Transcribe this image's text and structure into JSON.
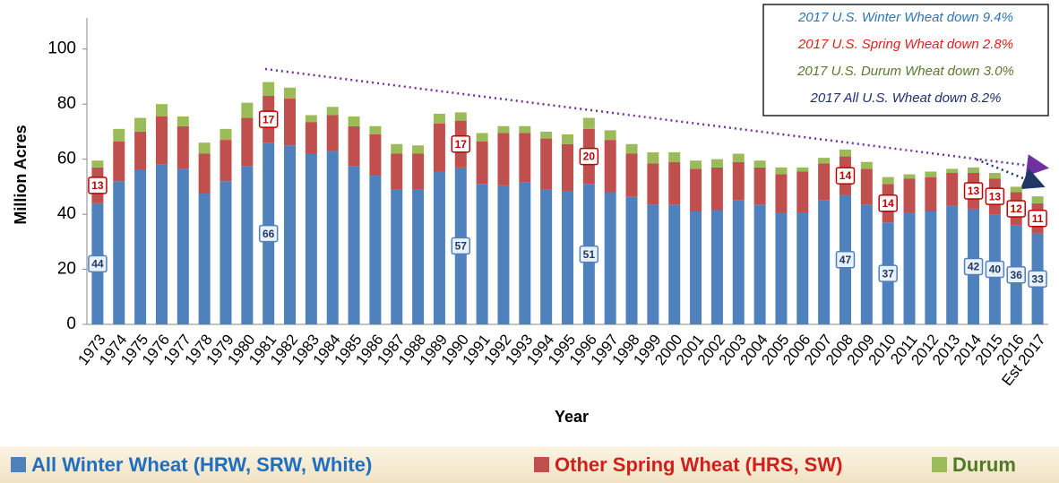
{
  "chart_data": {
    "type": "stacked_bar",
    "x_label": "Year",
    "y_label": "Million Acres",
    "categories": [
      "1973",
      "1974",
      "1975",
      "1976",
      "1977",
      "1978",
      "1979",
      "1980",
      "1981",
      "1982",
      "1983",
      "1984",
      "1985",
      "1986",
      "1987",
      "1988",
      "1989",
      "1990",
      "1991",
      "1992",
      "1993",
      "1994",
      "1995",
      "1996",
      "1997",
      "1998",
      "1999",
      "2000",
      "2001",
      "2002",
      "2003",
      "2004",
      "2005",
      "2006",
      "2007",
      "2008",
      "2009",
      "2010",
      "2011",
      "2012",
      "2013",
      "2014",
      "2015",
      "2016",
      "Est 2017"
    ],
    "series": [
      {
        "name": "All Winter Wheat (HRW, SRW, White)",
        "color": "#4f81bd",
        "legend_color": "#1f6fc0",
        "values": [
          44,
          52,
          56,
          58,
          56.5,
          47.5,
          52,
          57.5,
          66,
          65,
          62,
          63,
          57.5,
          54,
          49,
          49,
          55.5,
          57,
          51,
          50.5,
          51.5,
          49,
          48.5,
          51,
          48,
          46.5,
          43.5,
          43.5,
          41,
          41.5,
          45,
          43.5,
          40.5,
          40.5,
          45,
          47,
          43.5,
          37,
          40.5,
          41,
          43,
          42,
          40,
          36,
          33
        ],
        "value_labels": [
          "44",
          null,
          null,
          null,
          null,
          null,
          null,
          null,
          "66",
          null,
          null,
          null,
          null,
          null,
          null,
          null,
          null,
          "57",
          null,
          null,
          null,
          null,
          null,
          "51",
          null,
          null,
          null,
          null,
          null,
          null,
          null,
          null,
          null,
          null,
          null,
          "47",
          null,
          "37",
          null,
          null,
          null,
          "42",
          "40",
          "36",
          "33"
        ]
      },
      {
        "name": "Other Spring Wheat (HRS, SW)",
        "color": "#c0504d",
        "legend_color": "#d0201c",
        "values": [
          13,
          14.5,
          14,
          17.5,
          15.5,
          14.5,
          15,
          17.5,
          17,
          17,
          11.5,
          13,
          14.5,
          15,
          13,
          13,
          17.5,
          17,
          15.5,
          19,
          18,
          18.5,
          17,
          20,
          19,
          15.5,
          15,
          15.5,
          15.5,
          15.5,
          14,
          13.5,
          14,
          15,
          13.5,
          14,
          13,
          14,
          12.5,
          12.5,
          12,
          13,
          13,
          12,
          11
        ],
        "value_labels": [
          "13",
          null,
          null,
          null,
          null,
          null,
          null,
          null,
          "17",
          null,
          null,
          null,
          null,
          null,
          null,
          null,
          null,
          "17",
          null,
          null,
          null,
          null,
          null,
          "20",
          null,
          null,
          null,
          null,
          null,
          null,
          null,
          null,
          null,
          null,
          null,
          "14",
          null,
          "14",
          null,
          null,
          null,
          "13",
          "13",
          "12",
          "11"
        ]
      },
      {
        "name": "Durum",
        "color": "#9bbb59",
        "legend_color": "#4e7a25",
        "values": [
          2.5,
          4.5,
          5,
          4.5,
          3.5,
          4,
          4,
          5.5,
          5,
          4,
          2.5,
          3,
          3.5,
          3,
          3.5,
          3,
          3.5,
          3,
          3,
          2.5,
          2.5,
          2.5,
          3.5,
          4,
          3.5,
          3.5,
          4,
          3.5,
          3,
          3,
          3,
          2.5,
          2.5,
          1.5,
          2,
          2.5,
          2.5,
          2.5,
          1.5,
          2,
          1.5,
          2,
          2,
          2,
          2.5
        ]
      }
    ],
    "ylim": [
      0,
      110
    ],
    "yticks": [
      0,
      20,
      40,
      60,
      80,
      100
    ],
    "annotations": [
      {
        "text": "2017 U.S. Winter Wheat down 9.4%",
        "color": "#2e75b6"
      },
      {
        "text": "2017 U.S. Spring Wheat down 2.8%",
        "color": "#e0201c"
      },
      {
        "text": "2017 U.S. Durum Wheat down 3.0%",
        "color": "#5a7a2b"
      },
      {
        "text": "2017 All U.S. Wheat down 8.2%",
        "color": "#1f3070"
      }
    ]
  }
}
